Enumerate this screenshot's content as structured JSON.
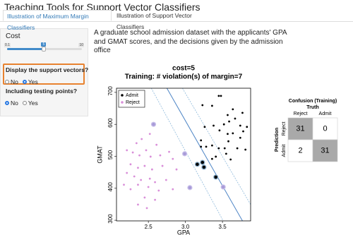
{
  "header": {
    "title": "Teaching Tools for Support Vector Classifiers"
  },
  "tabs": [
    "Illustration of Maximum Margin Classifiers",
    "Illustration of Support Vector Classifiers"
  ],
  "sidebar": {
    "cost": {
      "label": "Cost",
      "min": 0.1,
      "max": 10,
      "value": 5
    },
    "support_vectors": {
      "label": "Display the support vectors?",
      "options": [
        "No",
        "Yes"
      ],
      "selected": "Yes"
    },
    "testing": {
      "label": "Including testing points?",
      "options": [
        "No",
        "Yes"
      ],
      "selected": "No"
    }
  },
  "description": "A graduate school admission dataset with the applicants' GPA and GMAT scores, and the decisions given by the admission office",
  "chart_data": {
    "type": "scatter",
    "title": "cost=5",
    "subtitle": "Training: # violation(s) of margin=7",
    "xlabel": "GPA",
    "ylabel": "GMAT",
    "xlim": [
      2.07,
      3.88
    ],
    "ylim": [
      298,
      713
    ],
    "xticks": [
      2.5,
      {
        "value": 3,
        "label": "3.0"
      },
      3.5
    ],
    "yticks": [
      300,
      400,
      500,
      600,
      700
    ],
    "legend": "topleft",
    "series": [
      {
        "name": "Admit",
        "color": "#000000",
        "x": [
          3.23,
          3.36,
          3.45,
          3.48,
          3.64,
          3.57,
          3.77,
          3.26,
          3.38,
          3.52,
          3.59,
          3.74,
          3.67,
          3.46,
          3.57,
          3.64,
          3.74,
          3.78,
          3.83,
          3.21,
          3.28,
          3.36,
          3.45,
          3.53,
          3.58,
          3.7,
          3.81,
          3.55,
          3.61,
          3.36,
          3.41,
          3.21
        ],
        "y": [
          660,
          658,
          689,
          689,
          647,
          629,
          636,
          592,
          596,
          600,
          609,
          596,
          618,
          581,
          570,
          572,
          558,
          578,
          592,
          530,
          530,
          534,
          525,
          525,
          547,
          525,
          521,
          508,
          490,
          492,
          499,
          550
        ]
      },
      {
        "name": "Reject",
        "color": "#d98fd9",
        "x": [
          2.34,
          2.41,
          2.52,
          2.61,
          2.21,
          2.29,
          2.38,
          2.47,
          2.53,
          2.66,
          2.78,
          2.26,
          2.36,
          2.45,
          2.55,
          2.69,
          2.83,
          2.88,
          2.21,
          2.31,
          2.4,
          2.52,
          2.59,
          2.74,
          2.83,
          2.17,
          2.26,
          2.36,
          2.5,
          2.64,
          2.45,
          2.48,
          2.59,
          2.36
        ],
        "y": [
          541,
          554,
          570,
          536,
          519,
          512,
          503,
          519,
          499,
          503,
          514,
          475,
          464,
          470,
          459,
          470,
          492,
          459,
          448,
          437,
          426,
          430,
          419,
          426,
          397,
          411,
          397,
          411,
          404,
          393,
          371,
          338,
          364,
          349
        ]
      },
      {
        "color": "#000000",
        "halo": "#8fb3cf",
        "x": [
          3.16,
          3.23,
          3.25,
          3.41
        ],
        "y": [
          475,
          481,
          466,
          435
        ]
      },
      {
        "color": "#a89bd8",
        "halo": "#c9c0ea",
        "x": [
          2.57,
          2.99,
          3.06,
          3.51
        ],
        "y": [
          600,
          508,
          402,
          404
        ]
      }
    ],
    "boundary": {
      "color": "#4f86c6",
      "x": [
        2.75,
        3.77
      ],
      "y": [
        713,
        298
      ]
    },
    "margins": [
      {
        "color": "#7fb0d6",
        "x": [
          2.54,
          3.51
        ],
        "y": [
          713,
          298
        ]
      },
      {
        "color": "#7fb0d6",
        "x": [
          2.96,
          3.88
        ],
        "y": [
          713,
          349
        ]
      }
    ]
  },
  "confusion": {
    "title": "Confusion (Training)",
    "column_header": "Truth",
    "row_header": "Prediction",
    "columns": [
      "Reject",
      "Admit"
    ],
    "rows": [
      "Reject",
      "Admit"
    ],
    "values": [
      [
        31,
        0
      ],
      [
        2,
        31
      ]
    ]
  }
}
